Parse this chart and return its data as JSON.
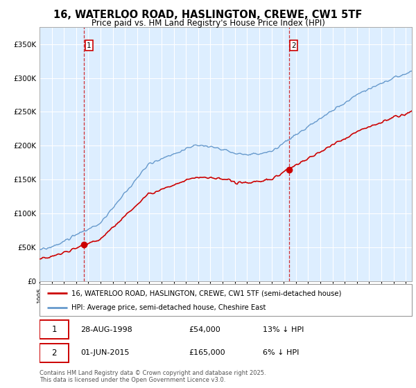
{
  "title_line1": "16, WATERLOO ROAD, HASLINGTON, CREWE, CW1 5TF",
  "title_line2": "Price paid vs. HM Land Registry's House Price Index (HPI)",
  "background_color": "#ffffff",
  "plot_bg_color": "#ddeeff",
  "grid_color": "#ffffff",
  "sale1_date_num": 1998.66,
  "sale1_price": 54000,
  "sale2_date_num": 2015.42,
  "sale2_price": 165000,
  "legend1": "16, WATERLOO ROAD, HASLINGTON, CREWE, CW1 5TF (semi-detached house)",
  "legend2": "HPI: Average price, semi-detached house, Cheshire East",
  "footer": "Contains HM Land Registry data © Crown copyright and database right 2025.\nThis data is licensed under the Open Government Licence v3.0.",
  "property_line_color": "#cc0000",
  "hpi_line_color": "#6699cc",
  "sale_marker_color": "#cc0000",
  "dashed_line_color": "#cc0000",
  "ylim_max": 375000,
  "ylim_min": 0,
  "xlim_min": 1995,
  "xlim_max": 2025.5
}
